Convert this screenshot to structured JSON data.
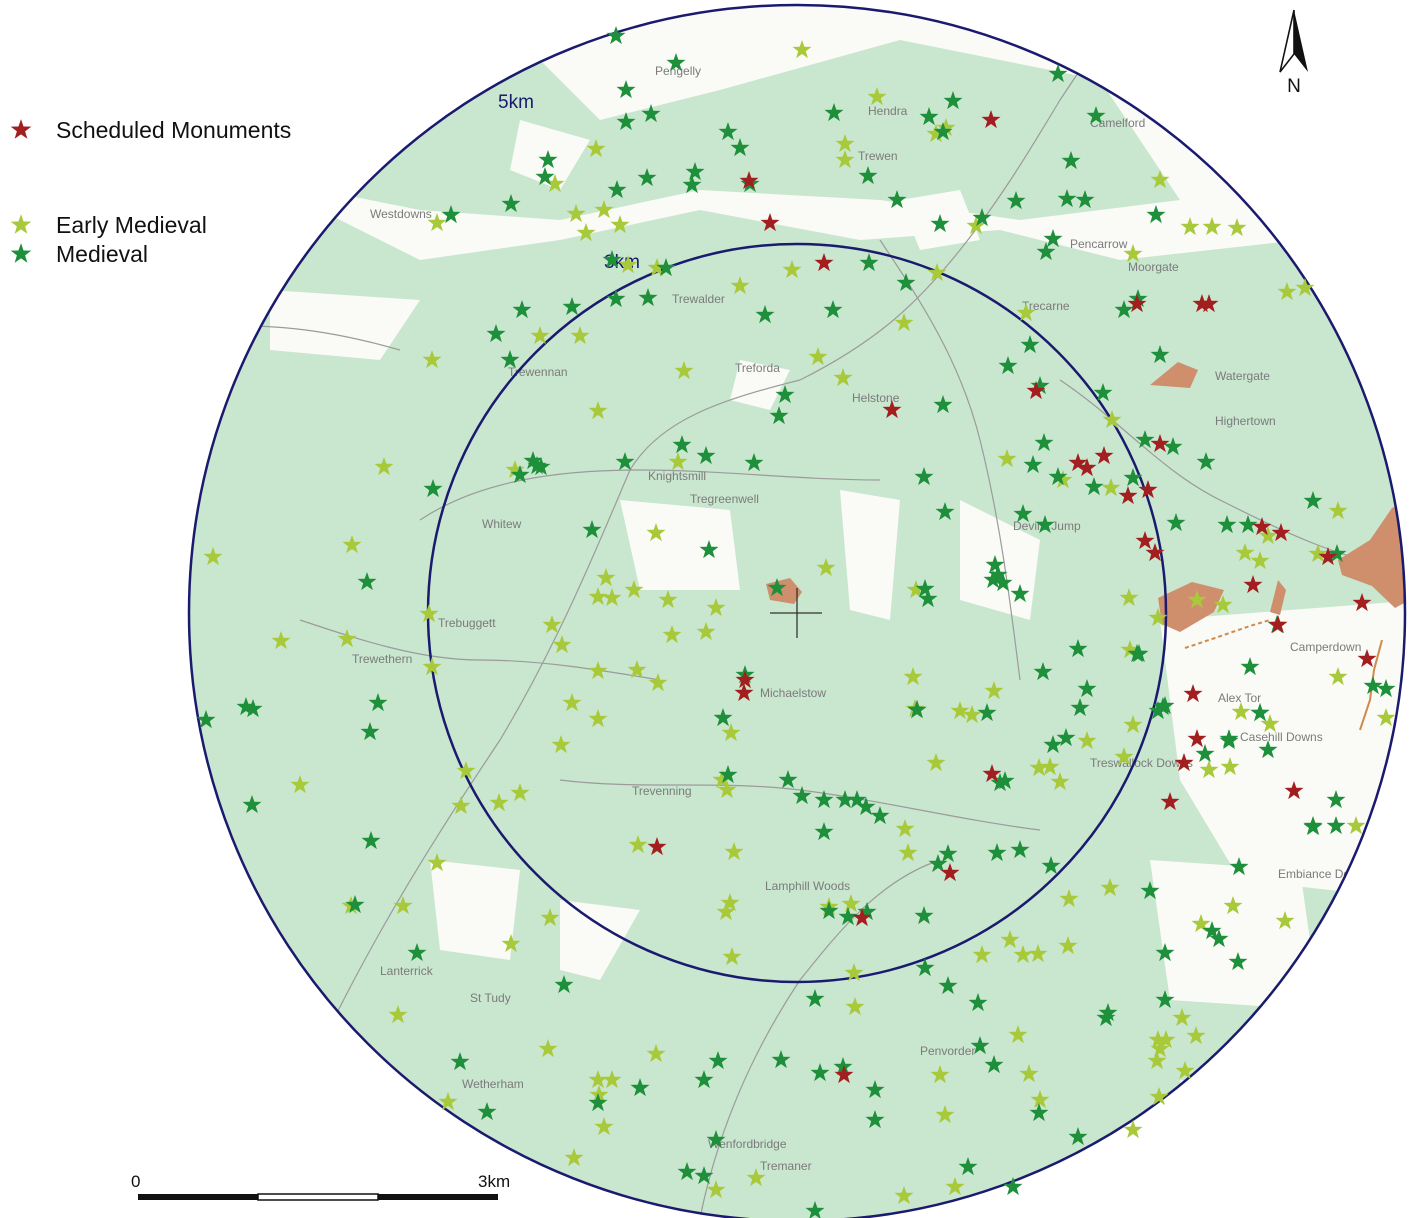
{
  "colors": {
    "background": "#ffffff",
    "land_white": "#fafaf6",
    "woodland": "#c9e6cf",
    "ring": "#1a1a6e",
    "scheduled_monument": "#a31f1f",
    "early_medieval": "#a8c93a",
    "medieval": "#1e8f3a",
    "monument_area": "#cf8f6c",
    "roads": "#9b9b9b"
  },
  "legend": {
    "scheduled_monuments": "Scheduled Monuments",
    "early_medieval": "Early Medieval",
    "medieval": "Medieval"
  },
  "rings": {
    "outer_label": "5km",
    "inner_label": "3km"
  },
  "scale_bar": {
    "start_label": "0",
    "end_label": "3km"
  },
  "north_arrow": {
    "label": "N"
  },
  "icons": {
    "star": "star-icon",
    "north": "north-arrow-icon",
    "centre": "crosshair-icon"
  },
  "place_names": [
    "Pengelly",
    "Westdowns",
    "Camelford",
    "Trewalder",
    "Pencarrow",
    "Moorgate",
    "Treforda",
    "Knightsmill",
    "Tregreenwell",
    "Trewennan",
    "Whitew",
    "Helstone",
    "Trebuggett",
    "Trewethern",
    "Michaelstow",
    "Trevenning",
    "Highertown",
    "Watergate",
    "Alex Tor",
    "Casehill Downs",
    "Treswallock Downs",
    "St Tudy",
    "Lamphill Woods",
    "Devil's Jump",
    "Camperdown",
    "Embiance Downs",
    "Penvorder",
    "Wetherham",
    "Hendra",
    "Trewen",
    "Trecarne",
    "Lanterrick",
    "Wenfordbridge",
    "Tremaner"
  ]
}
